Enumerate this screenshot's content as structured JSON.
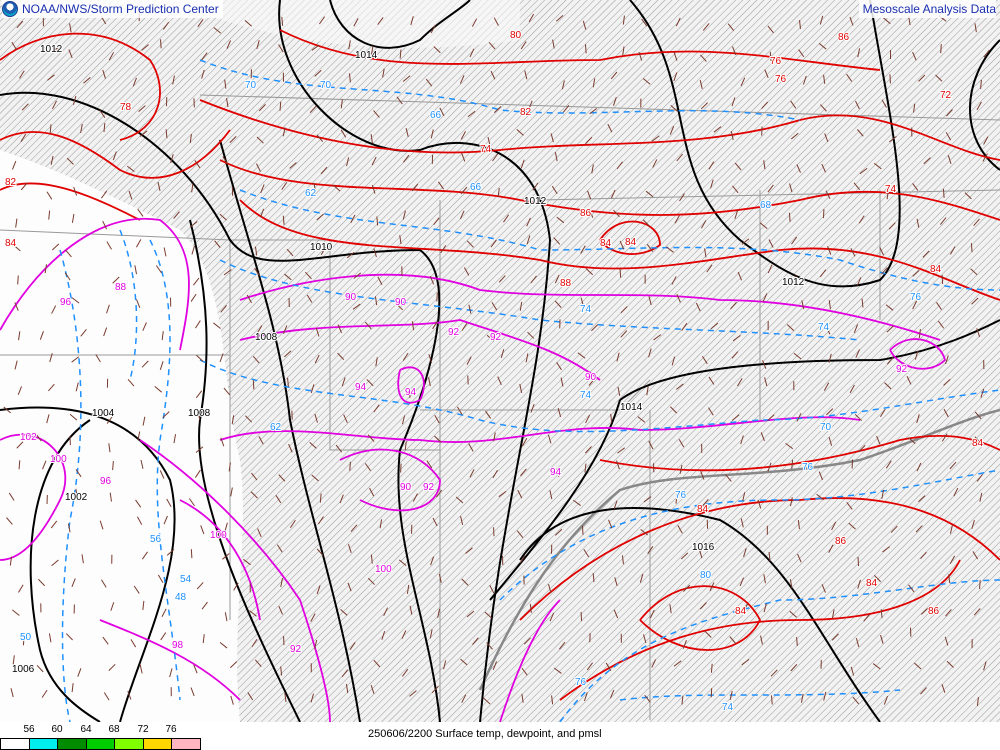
{
  "header": {
    "agency": "NOAA/NWS/Storm Prediction Center",
    "product": "Mesoscale Analysis Data",
    "logo_icon": "noaa-logo"
  },
  "footer": {
    "caption": "250606/2200 Surface temp, dewpoint, and pmsl",
    "legend_ticks": [
      "56",
      "60",
      "64",
      "68",
      "72",
      "76"
    ],
    "legend_colors": [
      "#ffffff",
      "#00eeee",
      "#008b00",
      "#00cd00",
      "#7fff00",
      "#ffd700",
      "#ffb6c1"
    ]
  },
  "colors": {
    "isobar": "#000000",
    "temperature_hot": "#e00000",
    "temperature_warm": "#e000e0",
    "dewpoint": "#1e90ff",
    "hatch": "#9a9a9a"
  },
  "isobar_labels": [
    "1014",
    "1012",
    "1012",
    "1010",
    "1008",
    "1008",
    "1004",
    "1002",
    "1006",
    "1014",
    "1016",
    "1012"
  ],
  "temp_labels": [
    "80",
    "74",
    "82",
    "84",
    "86",
    "84",
    "88",
    "84",
    "84",
    "86",
    "84",
    "86",
    "82",
    "84",
    "78",
    "76",
    "72",
    "74",
    "76",
    "84",
    "86",
    "84"
  ],
  "temp_magenta_labels": [
    "96",
    "88",
    "90",
    "92",
    "92",
    "94",
    "94",
    "90",
    "90",
    "92",
    "94",
    "100",
    "102",
    "100",
    "96",
    "92",
    "90",
    "100",
    "98",
    "92"
  ],
  "dewpoint_labels": [
    "70",
    "70",
    "66",
    "62",
    "66",
    "74",
    "74",
    "68",
    "74",
    "70",
    "76",
    "76",
    "80",
    "76",
    "74",
    "76",
    "62",
    "54",
    "56",
    "48",
    "50"
  ]
}
